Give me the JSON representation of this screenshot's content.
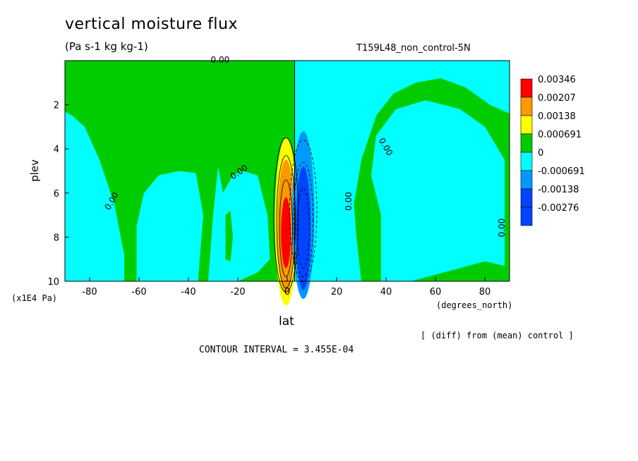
{
  "chart_data": {
    "type": "heatmap",
    "title": "vertical moisture flux",
    "subtitle": "(Pa s-1 kg kg-1)",
    "dataset_label": "T159L48_non_control-5N",
    "xlabel": "lat",
    "x_unit_label": "(degrees_north)",
    "ylabel": "plev",
    "y_unit_label": "(x1E4 Pa)",
    "xlim": [
      -90,
      90
    ],
    "ylim": [
      0,
      10
    ],
    "y_inverted": true,
    "x_ticks": [
      -80,
      -60,
      -40,
      -20,
      0,
      20,
      40,
      60,
      80
    ],
    "y_ticks": [
      2,
      4,
      6,
      8,
      10
    ],
    "contour_interval": "CONTOUR INTERVAL = 3.455E-04",
    "note": "[ (diff) from (mean) control ]",
    "contour_zero_label": "0.00",
    "colorbar": [
      {
        "label": "0.00346",
        "color": "#ff0000"
      },
      {
        "label": "0.00207",
        "color": "#ff9900"
      },
      {
        "label": "0.00138",
        "color": "#ffff00"
      },
      {
        "label": "0.000691",
        "color": "#00cc00"
      },
      {
        "label": "0",
        "color": "#00ffff"
      },
      {
        "label": "-0.000691",
        "color": "#0099ff"
      },
      {
        "label": "-0.00138",
        "color": "#0044ff"
      },
      {
        "label": "-0.00276",
        "color": ""
      }
    ],
    "colors": {
      "positive_small": "#00cc00",
      "negative_small": "#00ffff",
      "negative_mid": "#0099ff",
      "negative_strong": "#0044ff",
      "positive_mid": "#ffff00",
      "positive_high": "#ff9900",
      "positive_max": "#ff0000"
    },
    "grid": false
  }
}
